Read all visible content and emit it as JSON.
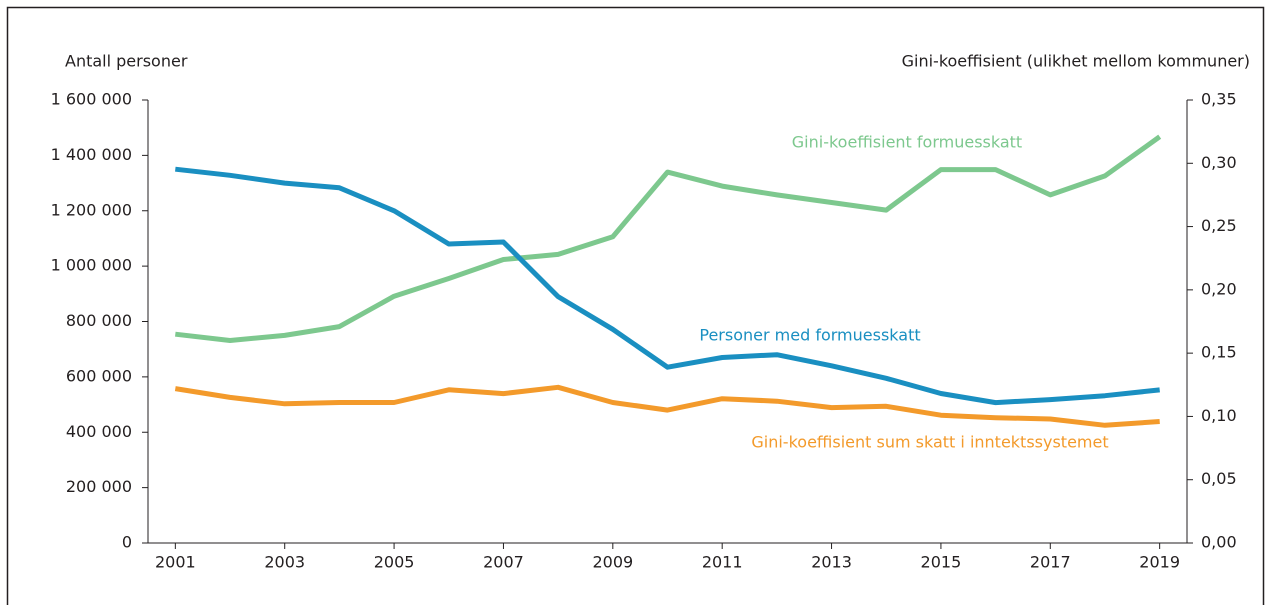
{
  "chart_data": {
    "type": "line",
    "y_label": "Antall personer",
    "y2_label": "Gini-koeffisient (ulikhet mellom kommuner)",
    "x": [
      2001,
      2002,
      2003,
      2004,
      2005,
      2006,
      2007,
      2008,
      2009,
      2010,
      2011,
      2012,
      2013,
      2014,
      2015,
      2016,
      2017,
      2018,
      2019
    ],
    "xlim": [
      2000.5,
      2019.5
    ],
    "xticks": [
      2001,
      2003,
      2005,
      2007,
      2009,
      2011,
      2013,
      2015,
      2017,
      2019
    ],
    "ylim": [
      0,
      1600000
    ],
    "yticks": [
      0,
      {
        "value": 200000,
        "label": "200 000"
      },
      {
        "value": 400000,
        "label": "400 000"
      },
      {
        "value": 600000,
        "label": "600 000"
      },
      {
        "value": 800000,
        "label": "800 000"
      },
      {
        "value": 1000000,
        "label": "1 000 000"
      },
      {
        "value": 1200000,
        "label": "1 200 000"
      },
      {
        "value": 1400000,
        "label": "1 400 000"
      },
      {
        "value": 1600000,
        "label": "1 600 000"
      }
    ],
    "y2lim": [
      0,
      0.35
    ],
    "y2ticks": [
      {
        "value": 0,
        "label": "0,00"
      },
      {
        "value": 0.05,
        "label": "0,05"
      },
      {
        "value": 0.1,
        "label": "0,10"
      },
      {
        "value": 0.15,
        "label": "0,15"
      },
      {
        "value": 0.2,
        "label": "0,20"
      },
      {
        "value": 0.25,
        "label": "0,25"
      },
      {
        "value": 0.3,
        "label": "0,30"
      },
      {
        "value": 0.35,
        "label": "0,35"
      }
    ],
    "grid": false,
    "series": [
      {
        "name": "Gini-koeffisient formuesskatt",
        "color": "#7dc88e",
        "axis": "y2",
        "values": [
          0.165,
          0.16,
          0.164,
          0.171,
          0.195,
          0.209,
          0.224,
          0.228,
          0.242,
          0.293,
          0.282,
          0.275,
          0.269,
          0.263,
          0.295,
          0.295,
          0.275,
          0.29,
          0.321
        ]
      },
      {
        "name": "Personer med formuesskatt",
        "color": "#1a8fc1",
        "axis": "y",
        "values": [
          1350000,
          1328000,
          1300000,
          1283000,
          1200000,
          1080000,
          1087000,
          890000,
          772000,
          635000,
          670000,
          680000,
          640000,
          595000,
          540000,
          507000,
          518000,
          532000,
          553000
        ]
      },
      {
        "name": "Gini-koeffisient sum skatt i inntektssystemet",
        "color": "#f39a2b",
        "axis": "y2",
        "values": [
          0.122,
          0.115,
          0.11,
          0.111,
          0.111,
          0.121,
          0.118,
          0.123,
          0.111,
          0.105,
          0.114,
          0.112,
          0.107,
          0.108,
          0.101,
          0.099,
          0.098,
          0.093,
          0.096
        ]
      }
    ]
  }
}
